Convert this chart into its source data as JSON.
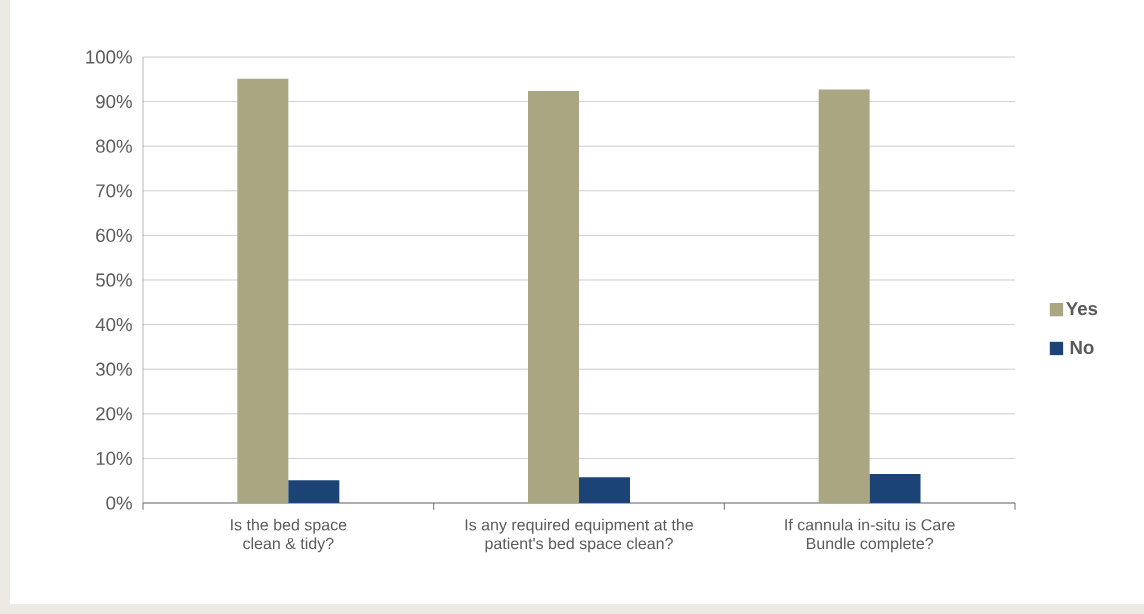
{
  "chart_data": {
    "type": "bar",
    "categories": [
      "Is the bed space clean & tidy?",
      "Is any required equipment at the patient's bed space clean?",
      "If cannula in-situ is Care Bundle complete?"
    ],
    "series": [
      {
        "name": "Yes",
        "color": "#aba682",
        "values": [
          95.1,
          92.4,
          92.7
        ]
      },
      {
        "name": "No",
        "color": "#1c4375",
        "values": [
          5.1,
          5.8,
          6.5
        ]
      }
    ],
    "ylim": [
      0,
      100
    ],
    "yticks": [
      {
        "value": 0,
        "label": "0%"
      },
      {
        "value": 10,
        "label": "10%"
      },
      {
        "value": 20,
        "label": "20%"
      },
      {
        "value": 30,
        "label": "30%"
      },
      {
        "value": 40,
        "label": "40%"
      },
      {
        "value": 50,
        "label": "50%"
      },
      {
        "value": 60,
        "label": "60%"
      },
      {
        "value": 70,
        "label": "70%"
      },
      {
        "value": 80,
        "label": "80%"
      },
      {
        "value": 90,
        "label": "90%"
      },
      {
        "value": 100,
        "label": "100%"
      }
    ],
    "grid": "y",
    "legend": "right"
  }
}
